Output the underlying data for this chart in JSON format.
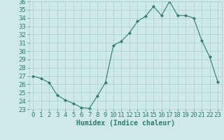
{
  "x": [
    0,
    1,
    2,
    3,
    4,
    5,
    6,
    7,
    8,
    9,
    10,
    11,
    12,
    13,
    14,
    15,
    16,
    17,
    18,
    19,
    20,
    21,
    22,
    23
  ],
  "y": [
    27.0,
    26.7,
    26.2,
    24.7,
    24.1,
    23.7,
    23.2,
    23.1,
    24.6,
    26.2,
    30.7,
    31.2,
    32.2,
    33.6,
    34.2,
    35.4,
    34.3,
    36.0,
    34.3,
    34.3,
    34.0,
    31.3,
    29.3,
    26.3
  ],
  "line_color": "#2e7d6e",
  "marker": "D",
  "marker_size": 2,
  "bg_color": "#cee9e8",
  "grid_color": "#aacfcc",
  "xlabel": "Humidex (Indice chaleur)",
  "ylim": [
    23,
    36
  ],
  "xlim": [
    -0.5,
    23.5
  ],
  "yticks": [
    23,
    24,
    25,
    26,
    27,
    28,
    29,
    30,
    31,
    32,
    33,
    34,
    35,
    36
  ],
  "xticks": [
    0,
    1,
    2,
    3,
    4,
    5,
    6,
    7,
    8,
    9,
    10,
    11,
    12,
    13,
    14,
    15,
    16,
    17,
    18,
    19,
    20,
    21,
    22,
    23
  ],
  "tick_color": "#2e7d6e",
  "label_color": "#2e7d6e",
  "font_size": 6.5
}
